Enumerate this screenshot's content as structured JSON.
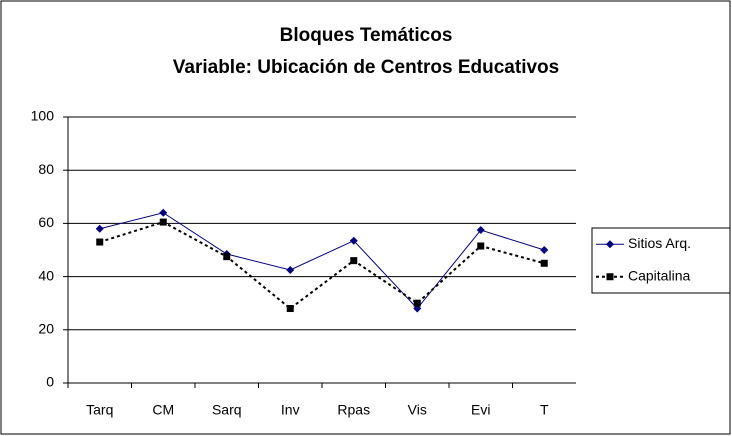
{
  "chart_data": {
    "type": "line",
    "title": "Bloques Temáticos",
    "subtitle": "Variable: Ubicación de Centros Educativos",
    "categories": [
      "Tarq",
      "CM",
      "Sarq",
      "Inv",
      "Rpas",
      "Vis",
      "Evi",
      "T"
    ],
    "series": [
      {
        "name": "Sitios Arq.",
        "color": "#000080",
        "marker": "diamond",
        "dashed": false,
        "values": [
          58,
          64,
          48.5,
          42.5,
          53.5,
          28,
          57.5,
          50
        ]
      },
      {
        "name": "Capitalina",
        "color": "#000000",
        "marker": "square",
        "dashed": true,
        "values": [
          53,
          60.5,
          47.5,
          28,
          46,
          30,
          51.5,
          45
        ]
      }
    ],
    "ylim": [
      0,
      100
    ],
    "yticks": [
      0,
      20,
      40,
      60,
      80,
      100
    ],
    "grid": true,
    "legend": "right"
  }
}
